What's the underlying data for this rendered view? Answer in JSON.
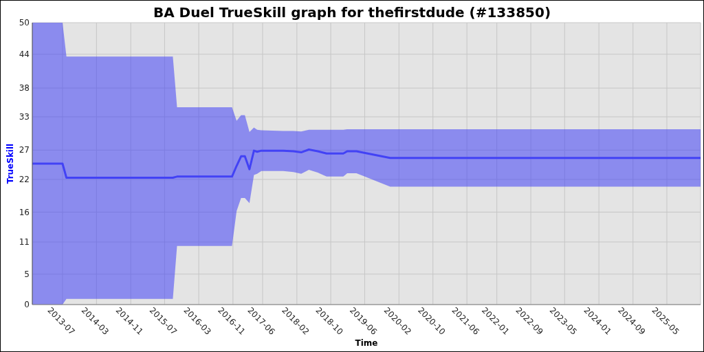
{
  "chart_data": {
    "type": "line",
    "title": "BA Duel TrueSkill graph for thefirstdude (#133850)",
    "xlabel": "Time",
    "ylabel": "TrueSkill",
    "x": [
      "2012-11-27",
      "2013-07-01",
      "2013-07-29",
      "2015-08-29",
      "2015-09-28",
      "2016-10-25",
      "2016-11-27",
      "2016-12-29",
      "2017-01-25",
      "2017-02-27",
      "2017-03-31",
      "2017-04-23",
      "2017-05-23",
      "2017-10-26",
      "2018-01-07",
      "2018-03-04",
      "2018-04-28",
      "2018-06-30",
      "2018-09-02",
      "2018-12-30",
      "2019-01-27",
      "2019-04-03",
      "2019-11-30",
      "2025-12-28"
    ],
    "series": [
      {
        "color": "#4242f5",
        "values": [
          25,
          25,
          22.5,
          22.5,
          22.7,
          22.7,
          24.6,
          26.3,
          26.3,
          24.0,
          27.3,
          27.1,
          27.3,
          27.3,
          27.2,
          27.0,
          27.5,
          27.2,
          26.8,
          26.8,
          27.2,
          27.2,
          26.0,
          26.0
        ],
        "lower": [
          0,
          0,
          1.0,
          1.0,
          10.4,
          10.4,
          16.6,
          18.9,
          18.9,
          18.0,
          23.0,
          23.2,
          23.7,
          23.7,
          23.5,
          23.2,
          23.9,
          23.4,
          22.7,
          22.7,
          23.3,
          23.3,
          20.9,
          20.9
        ],
        "upper": [
          50,
          50,
          44,
          44,
          35,
          35,
          32.6,
          33.6,
          33.6,
          30.6,
          31.4,
          31.0,
          30.9,
          30.8,
          30.8,
          30.7,
          31.0,
          31.0,
          31.0,
          31.0,
          31.1,
          31.1,
          31.1,
          31.1
        ]
      }
    ],
    "xlim": [
      "2012-11-27",
      "2025-12-28"
    ],
    "xticks": [
      "2013-07",
      "2014-03",
      "2014-11",
      "2015-07",
      "2016-03",
      "2016-11",
      "2017-06",
      "2018-02",
      "2018-10",
      "2019-06",
      "2020-02",
      "2020-10",
      "2021-06",
      "2022-01",
      "2022-09",
      "2023-05",
      "2024-01",
      "2024-09",
      "2025-05"
    ],
    "ylim": [
      0,
      50
    ],
    "yticks": [
      0,
      {
        "value": 5.4,
        "label": "5"
      },
      {
        "value": 11.1,
        "label": "11"
      },
      {
        "value": 16.4,
        "label": "16"
      },
      {
        "value": 22.2,
        "label": "22"
      },
      {
        "value": 27.4,
        "label": "27"
      },
      {
        "value": 33.3,
        "label": "33"
      },
      {
        "value": 38.4,
        "label": "38"
      },
      {
        "value": 44.4,
        "label": "44"
      },
      50
    ],
    "grid": true
  }
}
